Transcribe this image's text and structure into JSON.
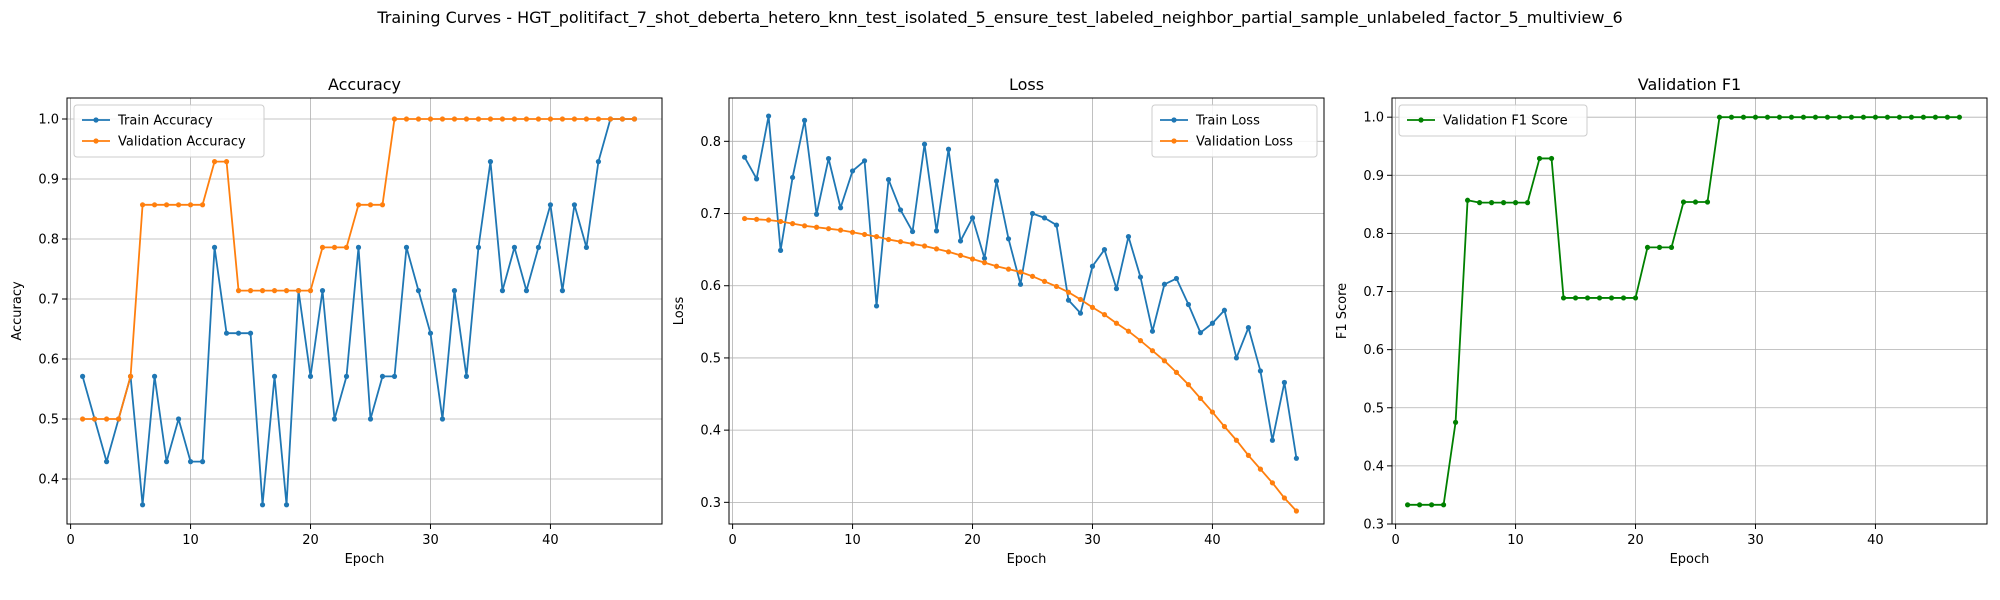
{
  "figure": {
    "title": "Training Curves - HGT_politifact_7_shot_deberta_hetero_knn_test_isolated_5_ensure_test_labeled_neighbor_partial_sample_unlabeled_factor_5_multiview_6"
  },
  "chart_data": [
    {
      "type": "line",
      "title": "Accuracy",
      "xlabel": "Epoch",
      "ylabel": "Accuracy",
      "grid": true,
      "legend_position": "top-left",
      "xlim": [
        -0.3,
        49.3
      ],
      "ylim": [
        0.325,
        1.035
      ],
      "xticks": [
        0,
        10,
        20,
        30,
        40
      ],
      "yticks": [
        0.4,
        0.5,
        0.6,
        0.7,
        0.8,
        0.9,
        1.0
      ],
      "ytick_labels": [
        "0.4",
        "0.5",
        "0.6",
        "0.7",
        "0.8",
        "0.9",
        "1.0"
      ],
      "x": [
        1,
        2,
        3,
        4,
        5,
        6,
        7,
        8,
        9,
        10,
        11,
        12,
        13,
        14,
        15,
        16,
        17,
        18,
        19,
        20,
        21,
        22,
        23,
        24,
        25,
        26,
        27,
        28,
        29,
        30,
        31,
        32,
        33,
        34,
        35,
        36,
        37,
        38,
        39,
        40,
        41,
        42,
        43,
        44,
        45,
        46,
        47
      ],
      "series": [
        {
          "name": "Train Accuracy",
          "color": "#1f77b4",
          "values": [
            0.571,
            0.5,
            0.429,
            0.5,
            0.571,
            0.357,
            0.571,
            0.429,
            0.5,
            0.429,
            0.429,
            0.786,
            0.643,
            0.643,
            0.643,
            0.357,
            0.571,
            0.357,
            0.714,
            0.571,
            0.714,
            0.5,
            0.571,
            0.786,
            0.5,
            0.571,
            0.571,
            0.786,
            0.714,
            0.643,
            0.5,
            0.714,
            0.571,
            0.786,
            0.929,
            0.714,
            0.786,
            0.714,
            0.786,
            0.857,
            0.714,
            0.857,
            0.786,
            0.929,
            1.0,
            1.0,
            1.0
          ]
        },
        {
          "name": "Validation Accuracy",
          "color": "#ff7f0e",
          "values": [
            0.5,
            0.5,
            0.5,
            0.5,
            0.571,
            0.857,
            0.857,
            0.857,
            0.857,
            0.857,
            0.857,
            0.929,
            0.929,
            0.714,
            0.714,
            0.714,
            0.714,
            0.714,
            0.714,
            0.714,
            0.786,
            0.786,
            0.786,
            0.857,
            0.857,
            0.857,
            1.0,
            1.0,
            1.0,
            1.0,
            1.0,
            1.0,
            1.0,
            1.0,
            1.0,
            1.0,
            1.0,
            1.0,
            1.0,
            1.0,
            1.0,
            1.0,
            1.0,
            1.0,
            1.0,
            1.0,
            1.0
          ]
        }
      ]
    },
    {
      "type": "line",
      "title": "Loss",
      "xlabel": "Epoch",
      "ylabel": "Loss",
      "grid": true,
      "legend_position": "top-right",
      "xlim": [
        -0.3,
        49.3
      ],
      "ylim": [
        0.27,
        0.86
      ],
      "xticks": [
        0,
        10,
        20,
        30,
        40
      ],
      "yticks": [
        0.3,
        0.4,
        0.5,
        0.6,
        0.7,
        0.8
      ],
      "ytick_labels": [
        "0.3",
        "0.4",
        "0.5",
        "0.6",
        "0.7",
        "0.8"
      ],
      "x": [
        1,
        2,
        3,
        4,
        5,
        6,
        7,
        8,
        9,
        10,
        11,
        12,
        13,
        14,
        15,
        16,
        17,
        18,
        19,
        20,
        21,
        22,
        23,
        24,
        25,
        26,
        27,
        28,
        29,
        30,
        31,
        32,
        33,
        34,
        35,
        36,
        37,
        38,
        39,
        40,
        41,
        42,
        43,
        44,
        45,
        46,
        47
      ],
      "series": [
        {
          "name": "Train Loss",
          "color": "#1f77b4",
          "values": [
            0.778,
            0.748,
            0.835,
            0.649,
            0.75,
            0.829,
            0.699,
            0.776,
            0.708,
            0.759,
            0.773,
            0.572,
            0.747,
            0.705,
            0.675,
            0.796,
            0.676,
            0.789,
            0.662,
            0.694,
            0.638,
            0.745,
            0.665,
            0.602,
            0.7,
            0.694,
            0.684,
            0.58,
            0.562,
            0.627,
            0.65,
            0.596,
            0.668,
            0.612,
            0.537,
            0.602,
            0.61,
            0.574,
            0.535,
            0.548,
            0.566,
            0.5,
            0.542,
            0.482,
            0.386,
            0.466,
            0.361
          ]
        },
        {
          "name": "Validation Loss",
          "color": "#ff7f0e",
          "values": [
            0.693,
            0.692,
            0.691,
            0.689,
            0.686,
            0.683,
            0.681,
            0.679,
            0.677,
            0.674,
            0.671,
            0.668,
            0.664,
            0.661,
            0.658,
            0.655,
            0.651,
            0.647,
            0.642,
            0.637,
            0.632,
            0.627,
            0.623,
            0.619,
            0.613,
            0.606,
            0.599,
            0.591,
            0.581,
            0.57,
            0.56,
            0.548,
            0.537,
            0.524,
            0.51,
            0.496,
            0.48,
            0.463,
            0.444,
            0.425,
            0.405,
            0.386,
            0.365,
            0.346,
            0.327,
            0.306,
            0.288
          ]
        }
      ]
    },
    {
      "type": "line",
      "title": "Validation F1",
      "xlabel": "Epoch",
      "ylabel": "F1 Score",
      "grid": true,
      "legend_position": "top-left",
      "xlim": [
        -0.3,
        49.3
      ],
      "ylim": [
        0.3,
        1.033
      ],
      "xticks": [
        0,
        10,
        20,
        30,
        40
      ],
      "yticks": [
        0.3,
        0.4,
        0.5,
        0.6,
        0.7,
        0.8,
        0.9,
        1.0
      ],
      "ytick_labels": [
        "0.3",
        "0.4",
        "0.5",
        "0.6",
        "0.7",
        "0.8",
        "0.9",
        "1.0"
      ],
      "x": [
        1,
        2,
        3,
        4,
        5,
        6,
        7,
        8,
        9,
        10,
        11,
        12,
        13,
        14,
        15,
        16,
        17,
        18,
        19,
        20,
        21,
        22,
        23,
        24,
        25,
        26,
        27,
        28,
        29,
        30,
        31,
        32,
        33,
        34,
        35,
        36,
        37,
        38,
        39,
        40,
        41,
        42,
        43,
        44,
        45,
        46,
        47
      ],
      "series": [
        {
          "name": "Validation F1 Score",
          "color": "#008000",
          "values": [
            0.333,
            0.333,
            0.333,
            0.333,
            0.475,
            0.857,
            0.853,
            0.853,
            0.853,
            0.853,
            0.853,
            0.929,
            0.929,
            0.689,
            0.689,
            0.689,
            0.689,
            0.689,
            0.689,
            0.689,
            0.776,
            0.776,
            0.776,
            0.854,
            0.854,
            0.854,
            1.0,
            1.0,
            1.0,
            1.0,
            1.0,
            1.0,
            1.0,
            1.0,
            1.0,
            1.0,
            1.0,
            1.0,
            1.0,
            1.0,
            1.0,
            1.0,
            1.0,
            1.0,
            1.0,
            1.0,
            1.0
          ]
        }
      ]
    }
  ]
}
